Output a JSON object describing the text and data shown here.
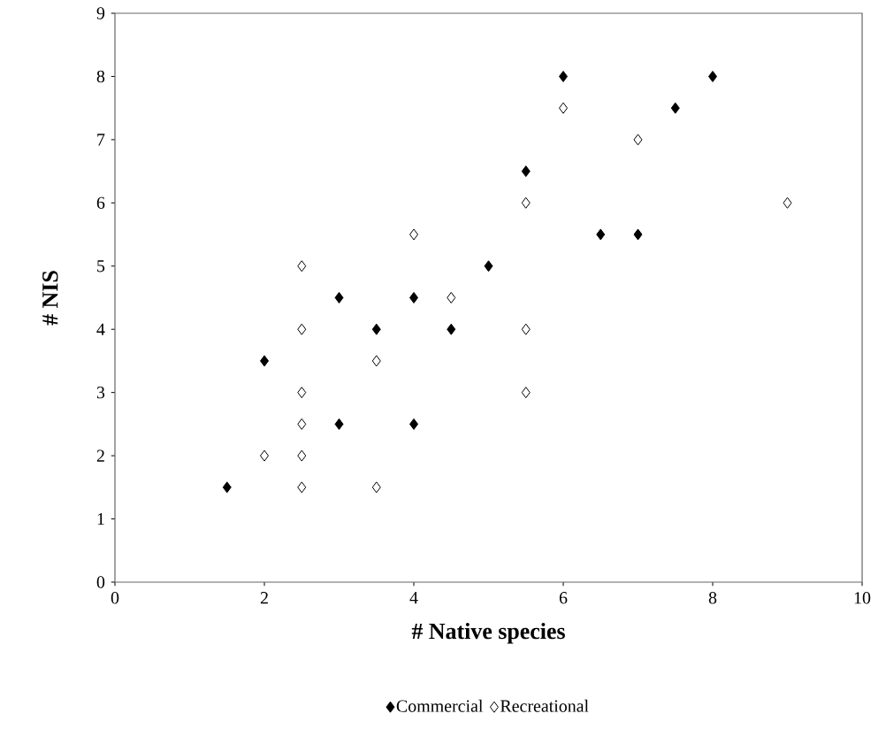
{
  "chart_data": {
    "type": "scatter",
    "xlabel": "# Native species",
    "ylabel": "# NIS",
    "xlim": [
      0,
      10
    ],
    "ylim": [
      0,
      9
    ],
    "xticks": [
      0,
      2,
      4,
      6,
      8,
      10
    ],
    "yticks": [
      0,
      1,
      2,
      3,
      4,
      5,
      6,
      7,
      8,
      9
    ],
    "marker": "diamond",
    "legend": "bottom",
    "grid": false,
    "series": [
      {
        "name": "Commercial",
        "color": "#000000",
        "x": [
          1.5,
          2,
          3,
          3,
          3.5,
          4,
          4,
          4.5,
          5,
          5.5,
          6,
          6.5,
          7,
          7.5,
          8
        ],
        "values": [
          1.5,
          3.5,
          4.5,
          2.5,
          4,
          4.5,
          2.5,
          4,
          5,
          6.5,
          8,
          5.5,
          5.5,
          7.5,
          8
        ]
      },
      {
        "name": "Recreational",
        "color": "#ffffff",
        "x": [
          2,
          2.5,
          2.5,
          2.5,
          2.5,
          2.5,
          2.5,
          3.5,
          3.5,
          4,
          4.5,
          5.5,
          5.5,
          5.5,
          6,
          7,
          9
        ],
        "values": [
          2,
          5,
          4,
          3,
          2.5,
          2,
          1.5,
          3.5,
          1.5,
          5.5,
          4.5,
          6,
          4,
          3,
          7.5,
          7,
          6
        ]
      }
    ]
  }
}
